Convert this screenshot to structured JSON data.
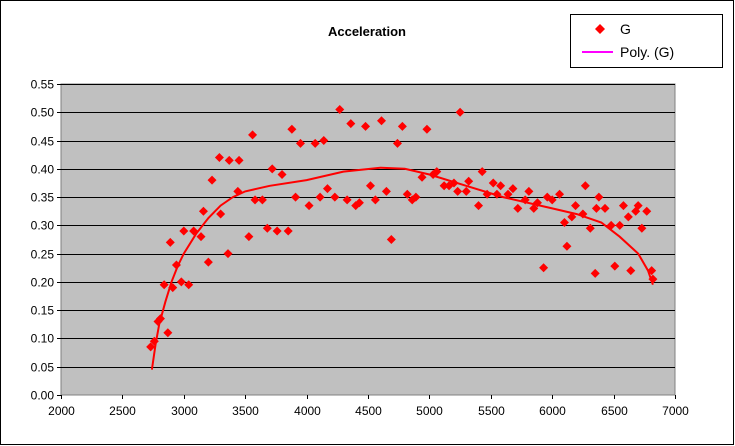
{
  "chart_data": {
    "type": "scatter",
    "title": "Acceleration",
    "xlabel": "",
    "ylabel": "",
    "xlim": [
      2000,
      7000
    ],
    "ylim": [
      0,
      0.55
    ],
    "xticks": [
      "2000",
      "2500",
      "3000",
      "3500",
      "4000",
      "4500",
      "5000",
      "5500",
      "6000",
      "6500",
      "7000"
    ],
    "yticks": [
      "0.00",
      "0.05",
      "0.10",
      "0.15",
      "0.20",
      "0.25",
      "0.30",
      "0.35",
      "0.40",
      "0.45",
      "0.50",
      "0.55"
    ],
    "grid": true,
    "legend_position": "top-right",
    "colors": {
      "series": "#FF0000",
      "trend": "#FF00FF",
      "plot_bg": "#C0C0C0"
    },
    "series": [
      {
        "name": "G",
        "marker": "diamond",
        "points": [
          [
            2730,
            0.085
          ],
          [
            2760,
            0.095
          ],
          [
            2790,
            0.13
          ],
          [
            2810,
            0.135
          ],
          [
            2840,
            0.195
          ],
          [
            2870,
            0.11
          ],
          [
            2890,
            0.27
          ],
          [
            2910,
            0.19
          ],
          [
            2940,
            0.23
          ],
          [
            2980,
            0.2
          ],
          [
            3000,
            0.29
          ],
          [
            3040,
            0.195
          ],
          [
            3080,
            0.29
          ],
          [
            3140,
            0.28
          ],
          [
            3160,
            0.325
          ],
          [
            3200,
            0.235
          ],
          [
            3230,
            0.38
          ],
          [
            3290,
            0.42
          ],
          [
            3300,
            0.32
          ],
          [
            3360,
            0.25
          ],
          [
            3370,
            0.415
          ],
          [
            3440,
            0.36
          ],
          [
            3450,
            0.415
          ],
          [
            3530,
            0.28
          ],
          [
            3560,
            0.46
          ],
          [
            3580,
            0.345
          ],
          [
            3640,
            0.345
          ],
          [
            3680,
            0.295
          ],
          [
            3720,
            0.4
          ],
          [
            3760,
            0.29
          ],
          [
            3800,
            0.39
          ],
          [
            3850,
            0.29
          ],
          [
            3880,
            0.47
          ],
          [
            3910,
            0.35
          ],
          [
            3950,
            0.445
          ],
          [
            4020,
            0.335
          ],
          [
            4070,
            0.445
          ],
          [
            4110,
            0.35
          ],
          [
            4140,
            0.45
          ],
          [
            4170,
            0.365
          ],
          [
            4230,
            0.35
          ],
          [
            4270,
            0.505
          ],
          [
            4330,
            0.345
          ],
          [
            4360,
            0.48
          ],
          [
            4400,
            0.335
          ],
          [
            4430,
            0.34
          ],
          [
            4480,
            0.475
          ],
          [
            4520,
            0.37
          ],
          [
            4560,
            0.345
          ],
          [
            4610,
            0.485
          ],
          [
            4650,
            0.36
          ],
          [
            4690,
            0.275
          ],
          [
            4740,
            0.445
          ],
          [
            4780,
            0.475
          ],
          [
            4820,
            0.355
          ],
          [
            4860,
            0.345
          ],
          [
            4890,
            0.35
          ],
          [
            4940,
            0.385
          ],
          [
            4980,
            0.47
          ],
          [
            5030,
            0.39
          ],
          [
            5060,
            0.395
          ],
          [
            5120,
            0.37
          ],
          [
            5160,
            0.37
          ],
          [
            5200,
            0.375
          ],
          [
            5230,
            0.36
          ],
          [
            5250,
            0.5
          ],
          [
            5300,
            0.36
          ],
          [
            5320,
            0.378
          ],
          [
            5400,
            0.335
          ],
          [
            5430,
            0.395
          ],
          [
            5470,
            0.355
          ],
          [
            5520,
            0.375
          ],
          [
            5550,
            0.355
          ],
          [
            5580,
            0.37
          ],
          [
            5640,
            0.355
          ],
          [
            5680,
            0.365
          ],
          [
            5720,
            0.33
          ],
          [
            5780,
            0.345
          ],
          [
            5810,
            0.36
          ],
          [
            5850,
            0.33
          ],
          [
            5880,
            0.34
          ],
          [
            5930,
            0.225
          ],
          [
            5960,
            0.35
          ],
          [
            6000,
            0.345
          ],
          [
            6060,
            0.355
          ],
          [
            6100,
            0.305
          ],
          [
            6120,
            0.263
          ],
          [
            6160,
            0.315
          ],
          [
            6190,
            0.335
          ],
          [
            6250,
            0.32
          ],
          [
            6270,
            0.37
          ],
          [
            6310,
            0.295
          ],
          [
            6350,
            0.215
          ],
          [
            6360,
            0.33
          ],
          [
            6380,
            0.35
          ],
          [
            6430,
            0.33
          ],
          [
            6480,
            0.3
          ],
          [
            6510,
            0.228
          ],
          [
            6550,
            0.3
          ],
          [
            6580,
            0.335
          ],
          [
            6620,
            0.315
          ],
          [
            6640,
            0.22
          ],
          [
            6680,
            0.325
          ],
          [
            6700,
            0.335
          ],
          [
            6730,
            0.295
          ],
          [
            6770,
            0.325
          ],
          [
            6810,
            0.22
          ],
          [
            6820,
            0.205
          ]
        ]
      },
      {
        "name": "Poly. (G)",
        "type": "line",
        "points": [
          [
            2740,
            0.045
          ],
          [
            2770,
            0.09
          ],
          [
            2800,
            0.125
          ],
          [
            2850,
            0.165
          ],
          [
            2900,
            0.2
          ],
          [
            2950,
            0.228
          ],
          [
            3000,
            0.25
          ],
          [
            3100,
            0.285
          ],
          [
            3200,
            0.313
          ],
          [
            3300,
            0.335
          ],
          [
            3400,
            0.35
          ],
          [
            3500,
            0.36
          ],
          [
            3700,
            0.37
          ],
          [
            4000,
            0.38
          ],
          [
            4300,
            0.395
          ],
          [
            4600,
            0.402
          ],
          [
            4800,
            0.4
          ],
          [
            5000,
            0.39
          ],
          [
            5300,
            0.37
          ],
          [
            5600,
            0.35
          ],
          [
            6000,
            0.33
          ],
          [
            6200,
            0.32
          ],
          [
            6400,
            0.305
          ],
          [
            6550,
            0.28
          ],
          [
            6700,
            0.25
          ],
          [
            6780,
            0.22
          ],
          [
            6820,
            0.195
          ]
        ]
      }
    ]
  }
}
